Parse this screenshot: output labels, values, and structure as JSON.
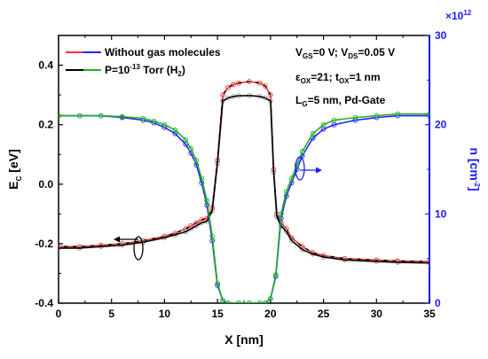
{
  "chart_data": {
    "type": "line",
    "xlabel": "X [nm]",
    "ylabel": "E",
    "ylabel_sub": "C",
    "ylabel_tail": " [eV]",
    "y2label": "n [cm",
    "y2label_sup": "-2",
    "y2label_tail": "]",
    "x_ticks": [
      "0",
      "5",
      "10",
      "15",
      "20",
      "25",
      "30",
      "35"
    ],
    "y_ticks": [
      "-0.4",
      "-0.2",
      "0.0",
      "0.2",
      "0.4"
    ],
    "y2_ticks": [
      "0",
      "10",
      "20",
      "30"
    ],
    "y2_multiplier": "×10",
    "y2_multiplier_exp": "12",
    "xlim": [
      0,
      35
    ],
    "ylim": [
      -0.4,
      0.5
    ],
    "y2lim": [
      0,
      30
    ],
    "legend": {
      "placement": "top-left",
      "entry1": "Without gas molecules",
      "entry2_pre": "P=10",
      "entry2_sup": "-13",
      "entry2_post": " Torr (H",
      "entry2_sub": "2",
      "entry2_end": ")"
    },
    "annotations": {
      "line1": {
        "a": "V",
        "a_sub": "GS",
        "b": "=0 V; V",
        "b_sub": "DS",
        "c": "=0.05 V"
      },
      "line2": {
        "a": "ε",
        "a_sub": "OX",
        "b": "=21; t",
        "b_sub": "OX",
        "c": "=1 nm"
      },
      "line3": {
        "a": "L",
        "a_sub": "G",
        "b": "=5 nm, Pd-Gate"
      }
    },
    "colors": {
      "ec_without": "#ff3030",
      "ec_with": "#000000",
      "n_without": "#2020ff",
      "n_with": "#20b020",
      "right_axis": "#1a1aff"
    },
    "series": [
      {
        "name": "Without gas molecules",
        "quantity": "Ec",
        "axis": "left",
        "x": [
          0,
          2,
          4,
          6,
          8,
          10,
          11,
          12,
          12.5,
          13,
          13.5,
          14,
          14.5,
          15,
          15.5,
          16,
          16.5,
          17,
          18,
          19,
          19.5,
          20,
          20.3,
          20.6,
          21,
          21.5,
          22,
          23,
          24,
          25,
          27,
          30,
          32,
          35
        ],
        "y": [
          -0.21,
          -0.21,
          -0.205,
          -0.2,
          -0.19,
          -0.175,
          -0.165,
          -0.15,
          -0.14,
          -0.13,
          -0.12,
          -0.115,
          -0.08,
          0.08,
          0.3,
          0.325,
          0.335,
          0.34,
          0.345,
          0.34,
          0.33,
          0.3,
          0.05,
          -0.1,
          -0.13,
          -0.15,
          -0.18,
          -0.21,
          -0.23,
          -0.24,
          -0.25,
          -0.255,
          -0.258,
          -0.26
        ]
      },
      {
        "name": "P=10^-13 Torr (H2)",
        "quantity": "Ec",
        "axis": "left",
        "x": [
          0,
          2,
          4,
          6,
          8,
          10,
          11,
          12,
          12.5,
          13,
          13.5,
          14,
          14.5,
          15,
          15.5,
          16,
          16.5,
          17,
          18,
          19,
          19.5,
          20,
          20.3,
          20.6,
          21,
          21.5,
          22,
          23,
          24,
          25,
          27,
          30,
          32,
          35
        ],
        "y": [
          -0.215,
          -0.215,
          -0.21,
          -0.205,
          -0.195,
          -0.18,
          -0.17,
          -0.16,
          -0.15,
          -0.14,
          -0.13,
          -0.125,
          -0.09,
          0.07,
          0.28,
          0.29,
          0.295,
          0.297,
          0.298,
          0.295,
          0.29,
          0.28,
          0.04,
          -0.11,
          -0.14,
          -0.16,
          -0.19,
          -0.22,
          -0.235,
          -0.245,
          -0.255,
          -0.26,
          -0.263,
          -0.265
        ]
      },
      {
        "name": "Without gas molecules",
        "quantity": "n",
        "axis": "right",
        "x": [
          0,
          2,
          4,
          6,
          8,
          9,
          10,
          11,
          12,
          12.5,
          13,
          13.5,
          14,
          14.5,
          15,
          15.5,
          16,
          17,
          18,
          19,
          19.5,
          20,
          20.5,
          21,
          21.5,
          22,
          22.5,
          23,
          24,
          25,
          26,
          28,
          30,
          32,
          35
        ],
        "y": [
          21,
          21,
          21,
          20.8,
          20.5,
          20.2,
          19.7,
          19,
          17.8,
          16.8,
          15.5,
          13.5,
          11,
          7,
          2,
          0.3,
          0,
          0,
          0,
          0,
          0,
          0.5,
          3,
          9.5,
          12,
          13.5,
          15,
          16.5,
          18.5,
          19.5,
          20,
          20.5,
          20.8,
          21,
          21
        ]
      },
      {
        "name": "P=10^-13 Torr (H2)",
        "quantity": "n",
        "axis": "right",
        "x": [
          0,
          2,
          4,
          6,
          8,
          9,
          10,
          11,
          12,
          12.5,
          13,
          13.5,
          14,
          14.5,
          15,
          15.5,
          16,
          17,
          18,
          19,
          19.5,
          20,
          20.5,
          21,
          21.5,
          22,
          22.5,
          23,
          24,
          25,
          26,
          28,
          30,
          32,
          35
        ],
        "y": [
          21,
          21,
          21,
          20.9,
          20.7,
          20.4,
          20,
          19.4,
          18.3,
          17.3,
          16,
          14,
          11.5,
          7.5,
          2.2,
          0.3,
          0,
          0,
          0,
          0,
          0,
          0.5,
          3.2,
          10,
          12.5,
          14,
          15.5,
          17,
          19,
          20,
          20.5,
          20.8,
          21,
          21.2,
          21.2
        ]
      }
    ]
  }
}
